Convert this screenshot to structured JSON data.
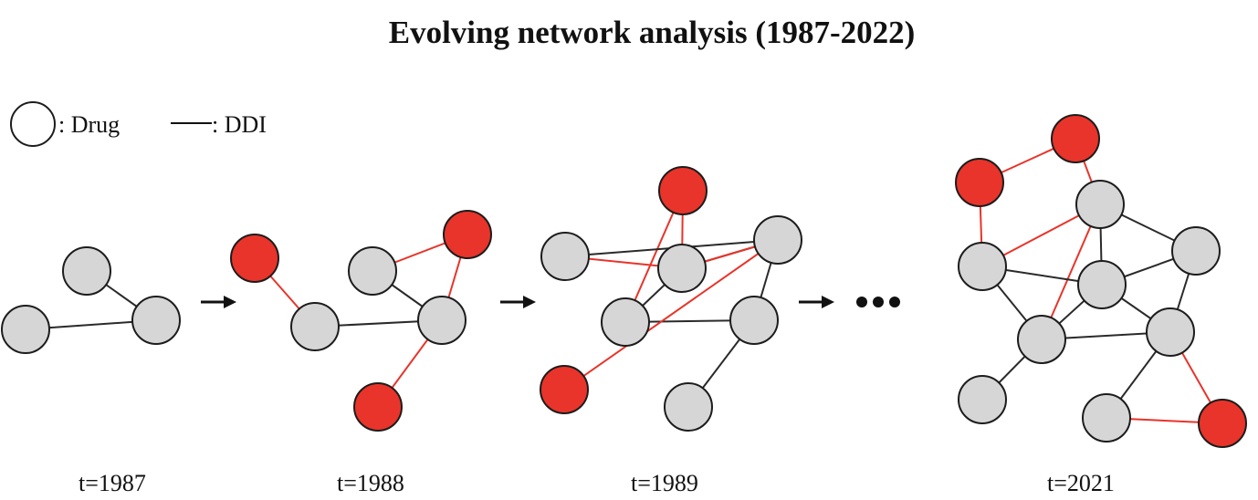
{
  "title": "Evolving network analysis (1987-2022)",
  "legend": {
    "drug_label": ": Drug",
    "ddi_label": ": DDI"
  },
  "colors": {
    "existing_node": "#d6d6d6",
    "new_node": "#e8342a",
    "existing_edge": "#2a2a2a",
    "new_edge": "#e8342a",
    "arrow": "#111111"
  },
  "icons": [
    "arrow-right-icon",
    "ellipsis-icon"
  ],
  "snapshots": [
    {
      "label": "t=1987",
      "nodes": [
        "existing",
        "existing",
        "existing"
      ],
      "edges": [
        [
          "existing",
          1,
          2
        ],
        [
          "existing",
          0,
          2
        ]
      ]
    },
    {
      "label": "t=1988",
      "nodes": [
        "new",
        "existing",
        "existing",
        "existing",
        "new",
        "new"
      ],
      "edges": [
        [
          "new",
          0,
          1
        ],
        [
          "existing",
          1,
          3
        ],
        [
          "existing",
          2,
          3
        ],
        [
          "new",
          2,
          4
        ],
        [
          "new",
          3,
          4
        ],
        [
          "new",
          3,
          5
        ]
      ]
    },
    {
      "label": "t=1989",
      "nodes": [
        "new",
        "existing",
        "existing",
        "existing",
        "existing",
        "existing",
        "existing",
        "new"
      ],
      "edges": [
        [
          "new",
          0,
          2
        ],
        [
          "new",
          0,
          3
        ],
        [
          "new",
          1,
          2
        ],
        [
          "existing",
          2,
          3
        ],
        [
          "existing",
          1,
          4
        ],
        [
          "existing",
          2,
          4
        ],
        [
          "new",
          2,
          4
        ],
        [
          "existing",
          3,
          5
        ],
        [
          "existing",
          4,
          5
        ],
        [
          "existing",
          5,
          6
        ],
        [
          "new",
          4,
          7
        ]
      ]
    },
    {
      "label": "t=2021",
      "nodes": [
        "new",
        "new",
        "existing",
        "existing",
        "existing",
        "existing",
        "existing",
        "existing",
        "existing",
        "existing",
        "new"
      ],
      "edges": [
        [
          "new",
          0,
          1
        ],
        [
          "new",
          1,
          2
        ],
        [
          "new",
          0,
          4
        ],
        [
          "new",
          2,
          4
        ],
        [
          "existing",
          2,
          3
        ],
        [
          "existing",
          2,
          5
        ],
        [
          "new",
          2,
          6
        ],
        [
          "existing",
          4,
          5
        ],
        [
          "existing",
          4,
          6
        ],
        [
          "existing",
          3,
          5
        ],
        [
          "existing",
          5,
          6
        ],
        [
          "existing",
          5,
          7
        ],
        [
          "existing",
          3,
          7
        ],
        [
          "existing",
          6,
          7
        ],
        [
          "existing",
          6,
          8
        ],
        [
          "existing",
          7,
          9
        ],
        [
          "new",
          7,
          10
        ],
        [
          "new",
          9,
          10
        ]
      ]
    }
  ]
}
